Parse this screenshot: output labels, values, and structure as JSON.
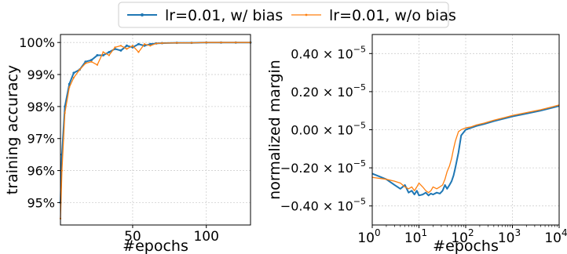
{
  "legend": {
    "items": [
      {
        "label": "lr=0.01, w/ bias",
        "color": "#1f77b4"
      },
      {
        "label": "lr=0.01, w/o bias",
        "color": "#ff7f0e"
      }
    ]
  },
  "chart_data": [
    {
      "type": "line",
      "xlabel": "#epochs",
      "ylabel": "training accuracy",
      "xlim": [
        1,
        130
      ],
      "ylim": [
        94.3,
        100.25
      ],
      "xticks": [
        50,
        100
      ],
      "yticks": [
        95,
        96,
        97,
        98,
        99,
        100
      ],
      "ytick_labels": [
        "95%",
        "96%",
        "97%",
        "98%",
        "99%",
        "100%"
      ],
      "grid": true,
      "series": [
        {
          "name": "lr=0.01, w/ bias",
          "color": "#1f77b4",
          "x": [
            1,
            2,
            4,
            7,
            10,
            14,
            18,
            22,
            26,
            30,
            34,
            38,
            42,
            46,
            50,
            54,
            58,
            62,
            66,
            70,
            80,
            90,
            100,
            110,
            120,
            130
          ],
          "y": [
            95.0,
            96.5,
            98.0,
            98.7,
            99.05,
            99.15,
            99.4,
            99.45,
            99.6,
            99.6,
            99.7,
            99.8,
            99.75,
            99.9,
            99.85,
            99.95,
            99.9,
            99.95,
            99.97,
            99.98,
            99.99,
            99.99,
            100.0,
            100.0,
            100.0,
            100.0
          ]
        },
        {
          "name": "lr=0.01, w/o bias",
          "color": "#ff7f0e",
          "x": [
            1,
            2,
            4,
            7,
            10,
            14,
            18,
            22,
            26,
            30,
            34,
            38,
            42,
            46,
            50,
            54,
            58,
            62,
            66,
            70,
            80,
            90,
            100,
            110,
            120,
            130
          ],
          "y": [
            94.5,
            96.0,
            97.8,
            98.6,
            98.9,
            99.15,
            99.35,
            99.4,
            99.3,
            99.7,
            99.6,
            99.85,
            99.9,
            99.8,
            99.9,
            99.7,
            99.95,
            99.9,
            99.97,
            99.98,
            99.99,
            99.99,
            100.0,
            100.0,
            100.0,
            100.0
          ]
        }
      ]
    },
    {
      "type": "line",
      "xlabel": "#epochs",
      "ylabel": "normalized margin",
      "xscale": "log",
      "xlim": [
        1,
        10000
      ],
      "ylim": [
        -5e-06,
        5e-06
      ],
      "xticks": [
        1,
        10,
        100,
        1000,
        10000
      ],
      "xtick_labels": [
        {
          "base": "10",
          "exp": "0"
        },
        {
          "base": "10",
          "exp": "1"
        },
        {
          "base": "10",
          "exp": "2"
        },
        {
          "base": "10",
          "exp": "3"
        },
        {
          "base": "10",
          "exp": "4"
        }
      ],
      "yticks": [
        -4e-06,
        -2e-06,
        0.0,
        2e-06,
        4e-06
      ],
      "ytick_labels": [
        {
          "mant": "−0.40",
          "base": "10",
          "exp": "−5"
        },
        {
          "mant": "−0.20",
          "base": "10",
          "exp": "−5"
        },
        {
          "mant": "0.00",
          "base": "10",
          "exp": "−5"
        },
        {
          "mant": "0.20",
          "base": "10",
          "exp": "−5"
        },
        {
          "mant": "0.40",
          "base": "10",
          "exp": "−5"
        }
      ],
      "grid": true,
      "series": [
        {
          "name": "lr=0.01, w/ bias",
          "color": "#1f77b4",
          "x": [
            1,
            2,
            3,
            4,
            5,
            6,
            7,
            8,
            9,
            10,
            12,
            14,
            16,
            18,
            20,
            24,
            28,
            32,
            36,
            40,
            45,
            50,
            55,
            60,
            70,
            80,
            100,
            130,
            170,
            250,
            400,
            700,
            1000,
            2000,
            4000,
            7000,
            10000
          ],
          "y": [
            -2.3e-06,
            -2.6e-06,
            -2.9e-06,
            -3.1e-06,
            -2.9e-06,
            -3.3e-06,
            -3.2e-06,
            -3.4e-06,
            -3.2e-06,
            -3.45e-06,
            -3.4e-06,
            -3.3e-06,
            -3.45e-06,
            -3.35e-06,
            -3.4e-06,
            -3.3e-06,
            -3.35e-06,
            -3.2e-06,
            -2.9e-06,
            -3.1e-06,
            -2.9e-06,
            -2.7e-06,
            -2.4e-06,
            -2e-06,
            -1.2e-06,
            -3e-07,
            0.0,
            1e-07,
            2e-07,
            3e-07,
            4.5e-07,
            6e-07,
            7e-07,
            8.5e-07,
            1e-06,
            1.15e-06,
            1.25e-06
          ]
        },
        {
          "name": "lr=0.01, w/o bias",
          "color": "#ff7f0e",
          "x": [
            1,
            2,
            3,
            4,
            5,
            6,
            7,
            8,
            9,
            10,
            12,
            14,
            16,
            18,
            20,
            24,
            28,
            32,
            36,
            40,
            45,
            50,
            55,
            60,
            70,
            80,
            100,
            130,
            170,
            250,
            400,
            700,
            1000,
            2000,
            4000,
            7000,
            10000
          ],
          "y": [
            -2.5e-06,
            -2.6e-06,
            -2.7e-06,
            -2.8e-06,
            -3e-06,
            -3.1e-06,
            -3e-06,
            -3.2e-06,
            -3e-06,
            -2.8e-06,
            -3e-06,
            -3.2e-06,
            -3.3e-06,
            -3.2e-06,
            -3e-06,
            -3.1e-06,
            -3e-06,
            -2.9e-06,
            -2.6e-06,
            -2.2e-06,
            -1.9e-06,
            -1.5e-06,
            -1e-06,
            -6e-07,
            -1e-07,
            0.0,
            1e-07,
            1.5e-07,
            2.5e-07,
            3.5e-07,
            5e-07,
            6.5e-07,
            7.5e-07,
            9e-07,
            1.05e-06,
            1.2e-06,
            1.3e-06
          ]
        }
      ]
    }
  ]
}
